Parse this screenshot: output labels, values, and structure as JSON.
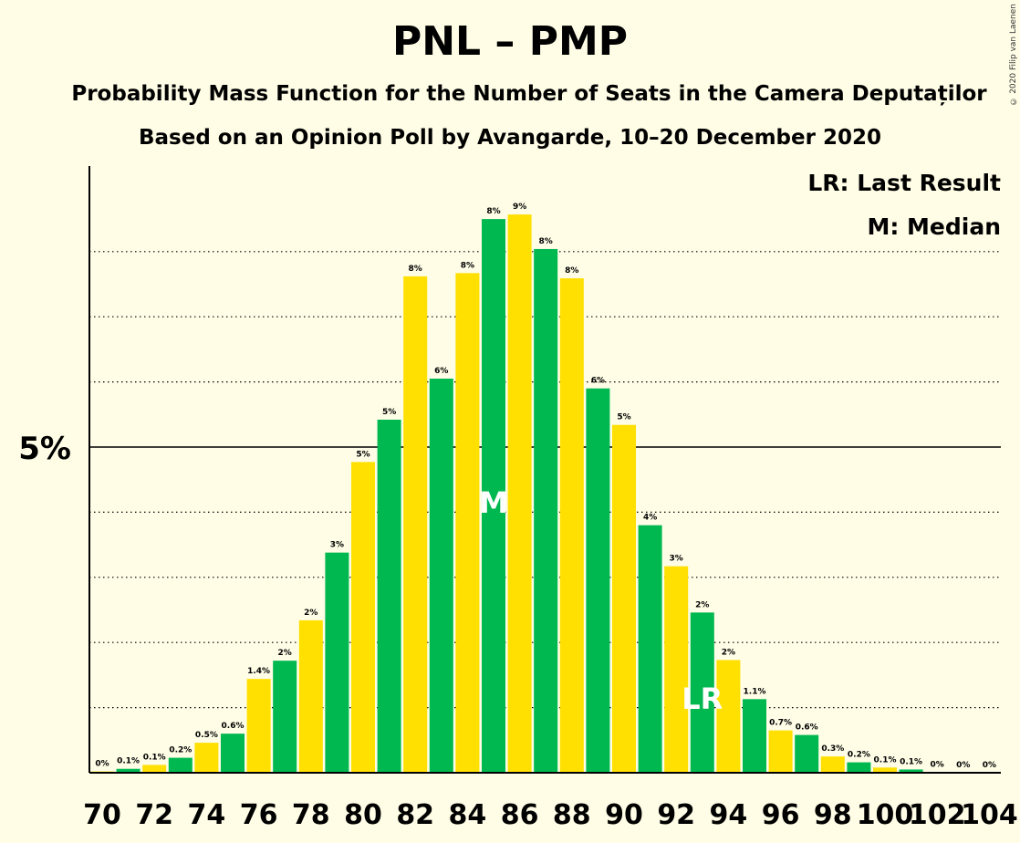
{
  "header": {
    "title": "PNL – PMP",
    "subtitle1": "Probability Mass Function for the Number of Seats in the Camera Deputaților",
    "subtitle2": "Based on an Opinion Poll by Avangarde, 10–20 December 2020",
    "copyright": "© 2020 Filip van Laenen"
  },
  "legend": {
    "lr": "LR: Last Result",
    "m": "M: Median"
  },
  "colors": {
    "green": "#00B850",
    "yellow": "#FFE000",
    "background": "#FFFDE6"
  },
  "chart_data": {
    "type": "bar",
    "ylabel_tick": "5%",
    "ytick_value": 5,
    "ylim": [
      0,
      9.35
    ],
    "grid": "dotted, every 1%",
    "categories": [
      70,
      71,
      72,
      73,
      74,
      75,
      76,
      77,
      78,
      79,
      80,
      81,
      82,
      83,
      84,
      85,
      86,
      87,
      88,
      89,
      90,
      91,
      92,
      93,
      94,
      95,
      96,
      97,
      98,
      99,
      100,
      101,
      102,
      103,
      104
    ],
    "xtick_labels": [
      "70",
      "72",
      "74",
      "76",
      "78",
      "80",
      "82",
      "84",
      "86",
      "88",
      "90",
      "92",
      "94",
      "96",
      "98",
      "100",
      "102",
      "104"
    ],
    "values": [
      0.02,
      0.06,
      0.12,
      0.23,
      0.46,
      0.6,
      1.44,
      1.72,
      2.34,
      3.38,
      4.77,
      5.42,
      7.62,
      6.05,
      7.67,
      8.5,
      8.57,
      8.04,
      7.59,
      5.9,
      5.34,
      3.8,
      3.17,
      2.46,
      1.73,
      1.13,
      0.65,
      0.58,
      0.25,
      0.16,
      0.08,
      0.05,
      0.01,
      0.0,
      0.0
    ],
    "labels": [
      "0%",
      "0.1%",
      "0.1%",
      "0.2%",
      "0.5%",
      "0.6%",
      "1.4%",
      "2%",
      "2%",
      "3%",
      "5%",
      "5%",
      "8%",
      "6%",
      "8%",
      "8%",
      "9%",
      "8%",
      "8%",
      "6%",
      "5%",
      "4%",
      "3%",
      "2%",
      "2%",
      "1.1%",
      "0.7%",
      "0.6%",
      "0.3%",
      "0.2%",
      "0.1%",
      "0.1%",
      "0%",
      "0%",
      "0%"
    ],
    "median_seat": 85,
    "median_marker": "M",
    "last_result_seat": 93,
    "last_result_marker": "LR"
  }
}
